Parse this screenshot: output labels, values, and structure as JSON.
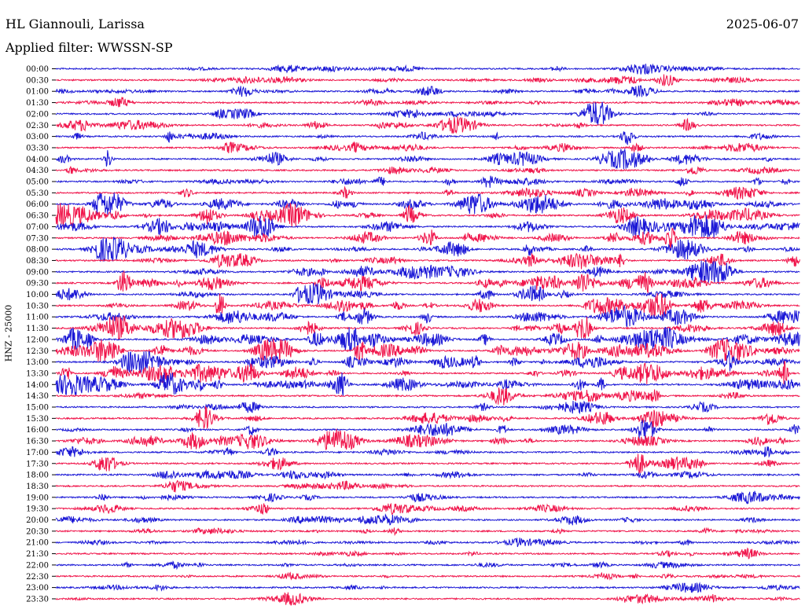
{
  "header": {
    "station": "HL Giannouli, Larissa",
    "date": "2025-06-07",
    "filter": "Applied filter: WWSSN-SP"
  },
  "chart_data": {
    "type": "line",
    "title": "HL Giannouli, Larissa",
    "subtitle": "Applied filter: WWSSN-SP",
    "date": "2025-06-07",
    "ylabel": "HNZ - 25000",
    "xlabel": "",
    "colors": [
      "#1a17d6",
      "#f0144a"
    ],
    "rows": [
      "00:00",
      "00:30",
      "01:00",
      "01:30",
      "02:00",
      "02:30",
      "03:00",
      "03:30",
      "04:00",
      "04:30",
      "05:00",
      "05:30",
      "06:00",
      "06:30",
      "07:00",
      "07:30",
      "08:00",
      "08:30",
      "09:00",
      "09:30",
      "10:00",
      "10:30",
      "11:00",
      "11:30",
      "12:00",
      "12:30",
      "13:00",
      "13:30",
      "14:00",
      "14:30",
      "15:00",
      "15:30",
      "16:00",
      "16:30",
      "17:00",
      "17:30",
      "18:00",
      "18:30",
      "19:00",
      "19:30",
      "20:00",
      "20:30",
      "21:00",
      "21:30",
      "22:00",
      "22:30",
      "23:00",
      "23:30"
    ],
    "grid": false,
    "legend": "none"
  }
}
